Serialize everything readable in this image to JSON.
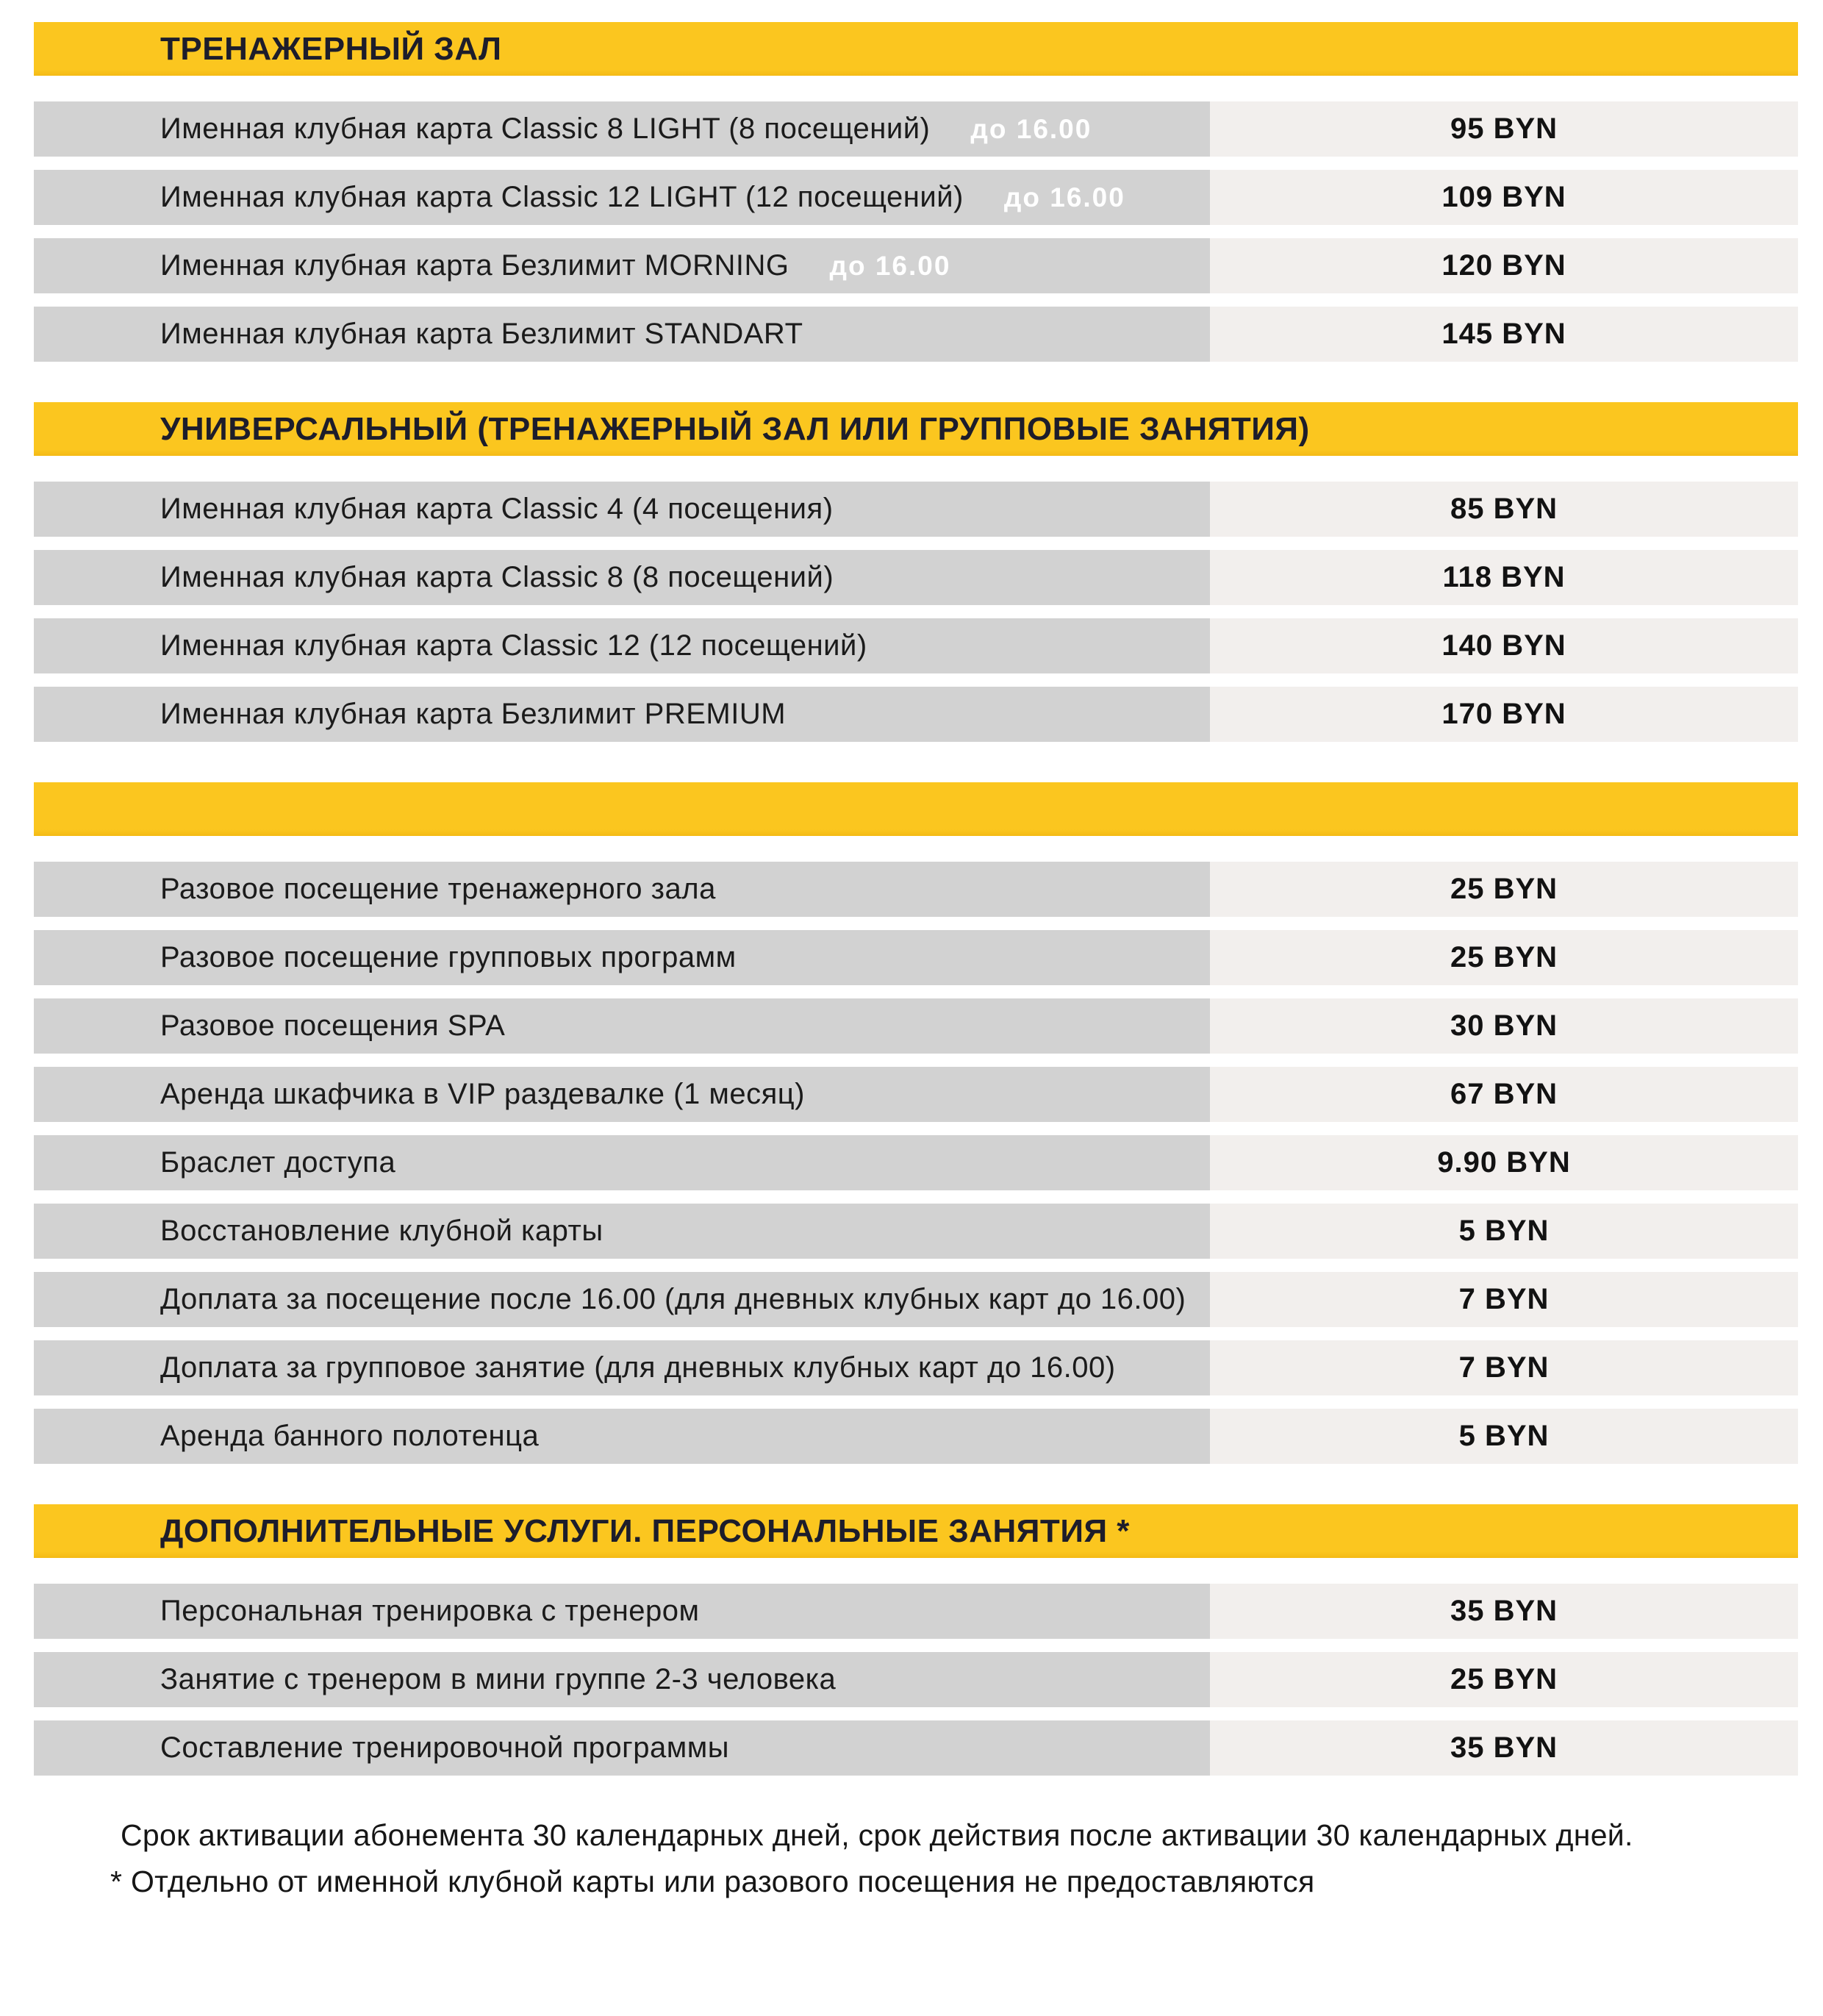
{
  "currency": "BYN",
  "colors": {
    "accent_yellow": "#FBC61F",
    "row_gray": "#D2D2D2",
    "price_bg": "#F2EFED",
    "badge_text": "#FFFFFF",
    "header_text": "#1D1D2B",
    "body_text": "#1B1B1B"
  },
  "sections": [
    {
      "title": "ТРЕНАЖЕРНЫЙ ЗАЛ",
      "rows": [
        {
          "label": "Именная клубная карта Classic 8 LIGHT (8 посещений)",
          "badge": "до 16.00",
          "price": "95 BYN"
        },
        {
          "label": "Именная клубная карта Classic 12 LIGHT (12 посещений)",
          "badge": "до 16.00",
          "price": "109 BYN"
        },
        {
          "label": "Именная клубная карта  Безлимит MORNING",
          "badge": "до 16.00",
          "price": "120 BYN"
        },
        {
          "label": "Именная клубная карта  Безлимит STANDART",
          "badge": "",
          "price": "145 BYN"
        }
      ]
    },
    {
      "title": "УНИВЕРСАЛЬНЫЙ (ТРЕНАЖЕРНЫЙ ЗАЛ ИЛИ ГРУППОВЫЕ ЗАНЯТИЯ)",
      "rows": [
        {
          "label": "Именная клубная карта Classic 4 (4 посещения)",
          "badge": "",
          "price": "85 BYN"
        },
        {
          "label": "Именная клубная карта Classic 8 (8 посещений)",
          "badge": "",
          "price": "118 BYN"
        },
        {
          "label": "Именная клубная карта Classic 12 (12 посещений)",
          "badge": "",
          "price": "140 BYN"
        },
        {
          "label": "Именная клубная карта  Безлимит PREMIUM",
          "badge": "",
          "price": "170 BYN"
        }
      ]
    },
    {
      "title": "",
      "rows": [
        {
          "label": "Разовое посещение  тренажерного зала",
          "badge": "",
          "price": "25 BYN"
        },
        {
          "label": "Разовое посещение групповых программ",
          "badge": "",
          "price": "25 BYN"
        },
        {
          "label": "Разовое посещения SPA",
          "badge": "",
          "price": "30 BYN"
        },
        {
          "label": "Аренда шкафчика в VIP раздевалке (1 месяц)",
          "badge": "",
          "price": "67 BYN"
        },
        {
          "label": "Браслет доступа",
          "badge": "",
          "price": "9.90 BYN"
        },
        {
          "label": "Восстановление клубной карты",
          "badge": "",
          "price": "5 BYN"
        },
        {
          "label": "Доплата за посещение после 16.00 (для дневных  клубных карт до 16.00)",
          "badge": "",
          "price": "7 BYN"
        },
        {
          "label": "Доплата за групповое занятие (для дневных клубных карт до 16.00)",
          "badge": "",
          "price": "7 BYN"
        },
        {
          "label": "Аренда банного полотенца",
          "badge": "",
          "price": "5 BYN"
        }
      ]
    },
    {
      "title": "ДОПОЛНИТЕЛЬНЫЕ УСЛУГИ. ПЕРСОНАЛЬНЫЕ ЗАНЯТИЯ *",
      "rows": [
        {
          "label": "Персональная тренировка с тренером",
          "badge": "",
          "price": "35 BYN"
        },
        {
          "label": "Занятие с тренером в мини группе 2-3 человека",
          "badge": "",
          "price": "25 BYN"
        },
        {
          "label": "Составление тренировочной программы",
          "badge": "",
          "price": "35 BYN"
        }
      ]
    }
  ],
  "footer": {
    "line1": "Срок активации абонемента 30 календарных дней, срок действия после активации 30 календарных дней.",
    "line2": "* Отдельно от именной клубной карты или разового посещения не предоставляются"
  }
}
